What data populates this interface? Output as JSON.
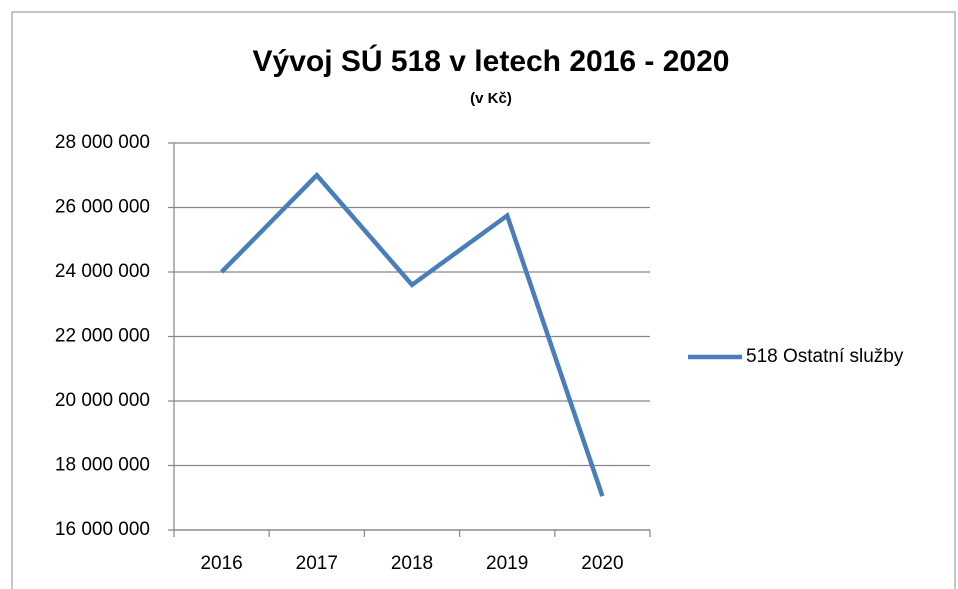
{
  "chart_data": {
    "type": "line",
    "title": "Vývoj SÚ 518 v letech 2016 - 2020",
    "subtitle": "(v Kč)",
    "categories": [
      "2016",
      "2017",
      "2018",
      "2019",
      "2020"
    ],
    "series": [
      {
        "name": "518 Ostatní služby",
        "color": "#4a7ebb",
        "values": [
          24000000,
          27000000,
          23600000,
          25750000,
          17050000
        ]
      }
    ],
    "ylim": [
      16000000,
      28000000
    ],
    "yticks": [
      {
        "value": 16000000,
        "label": "16 000 000"
      },
      {
        "value": 18000000,
        "label": "18 000 000"
      },
      {
        "value": 20000000,
        "label": "20 000 000"
      },
      {
        "value": 22000000,
        "label": "22 000 000"
      },
      {
        "value": 24000000,
        "label": "24 000 000"
      },
      {
        "value": 26000000,
        "label": "26 000 000"
      },
      {
        "value": 28000000,
        "label": "28 000 000"
      }
    ],
    "grid": true,
    "legend": "right"
  }
}
